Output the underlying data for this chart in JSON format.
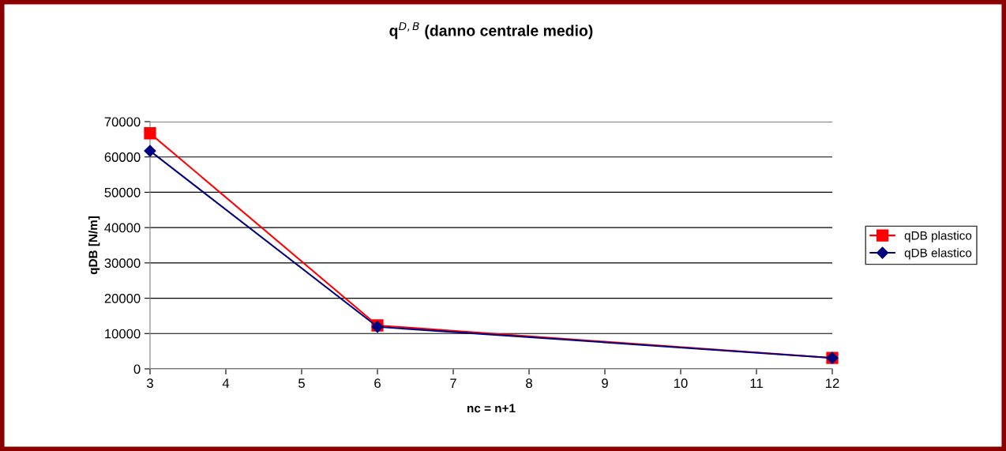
{
  "chart_data": {
    "type": "line",
    "title": "q$^{D,B}$ (danno centrale medio)",
    "xlabel": "nc = n+1",
    "ylabel": "qDB [N/m]",
    "x": [
      3,
      6,
      12
    ],
    "series": [
      {
        "name": "qDB plastico",
        "color": "#ff0000",
        "marker": "square",
        "values": [
          66700,
          12300,
          3100
        ]
      },
      {
        "name": "qDB elastico",
        "color": "#000080",
        "marker": "diamond",
        "values": [
          61700,
          11900,
          3100
        ]
      }
    ],
    "xlim": [
      3,
      12
    ],
    "xticks": [
      3,
      4,
      5,
      6,
      7,
      8,
      9,
      10,
      11,
      12
    ],
    "ylim": [
      0,
      70000
    ],
    "yticks": [
      0,
      10000,
      20000,
      30000,
      40000,
      50000,
      60000,
      70000
    ],
    "grid": "y",
    "legend": "right",
    "line_style": "solid"
  }
}
